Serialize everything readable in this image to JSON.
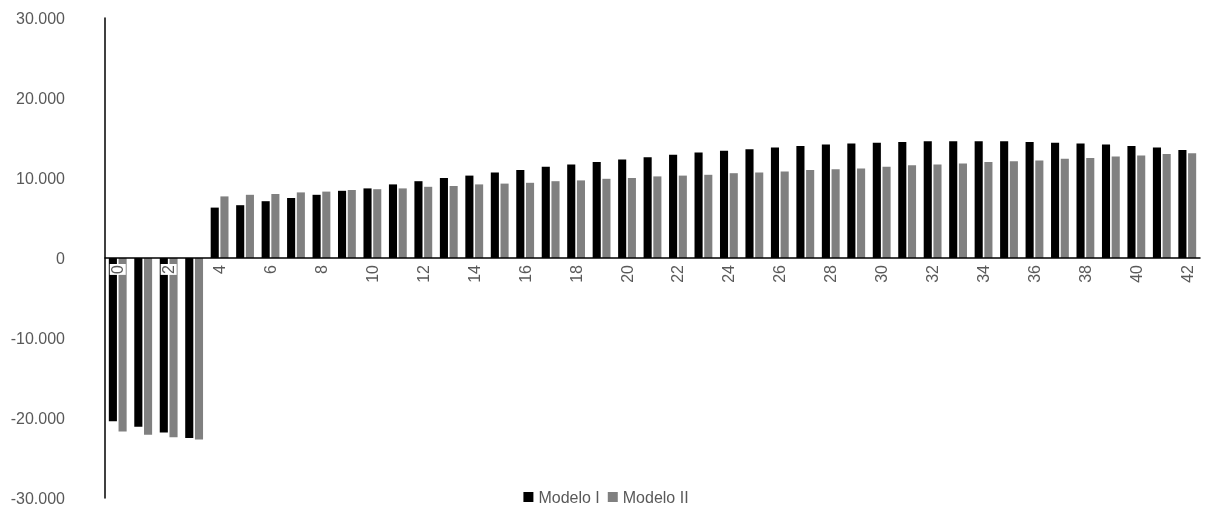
{
  "chart_data": {
    "type": "bar",
    "categories": [
      "0",
      null,
      "2",
      null,
      "4",
      null,
      "6",
      null,
      "8",
      null,
      "10",
      null,
      "12",
      null,
      "14",
      null,
      "16",
      null,
      "18",
      null,
      "20",
      null,
      "22",
      null,
      "24",
      null,
      "26",
      null,
      "28",
      null,
      "30",
      null,
      "32",
      null,
      "34",
      null,
      "36",
      null,
      "38",
      null,
      "40",
      null,
      "42"
    ],
    "series": [
      {
        "name": "Modelo I",
        "color": "#000000",
        "values": [
          -20400,
          -21100,
          -21800,
          -22500,
          6300,
          6600,
          7100,
          7500,
          7900,
          8400,
          8700,
          9200,
          9600,
          10000,
          10300,
          10700,
          11000,
          11400,
          11700,
          12000,
          12300,
          12600,
          12900,
          13200,
          13400,
          13600,
          13800,
          14000,
          14200,
          14300,
          14400,
          14500,
          14600,
          14600,
          14600,
          14600,
          14500,
          14400,
          14300,
          14200,
          14000,
          13800,
          13500
        ]
      },
      {
        "name": "Modelo II",
        "color": "#808080",
        "values": [
          -21700,
          -22100,
          -22400,
          -22700,
          7700,
          7900,
          8000,
          8200,
          8300,
          8500,
          8600,
          8700,
          8900,
          9000,
          9200,
          9300,
          9400,
          9600,
          9700,
          9900,
          10000,
          10200,
          10300,
          10400,
          10600,
          10700,
          10800,
          11000,
          11100,
          11200,
          11400,
          11600,
          11700,
          11800,
          12000,
          12100,
          12200,
          12400,
          12500,
          12700,
          12800,
          13000,
          13100
        ]
      }
    ],
    "ylim": [
      -30000,
      30000
    ],
    "yticks": [
      {
        "value": -30000,
        "label": "-30.000"
      },
      {
        "value": -20000,
        "label": "-20.000"
      },
      {
        "value": -10000,
        "label": "-10.000"
      },
      0,
      {
        "value": 10000,
        "label": "10.000"
      },
      {
        "value": 20000,
        "label": "20.000"
      },
      {
        "value": 30000,
        "label": "30.000"
      }
    ],
    "grid": false,
    "legend": "bottom"
  }
}
